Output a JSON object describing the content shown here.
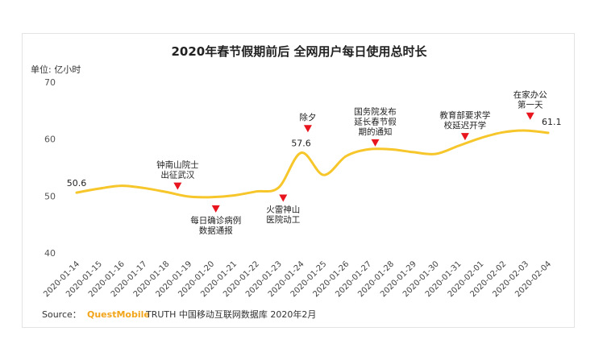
{
  "chart_data": {
    "type": "line",
    "title": "2020年春节假期前后 全网用户每日使用总时长",
    "ylabel": "单位: 亿小时",
    "ylim": [
      40,
      70
    ],
    "yticks": [
      40,
      50,
      60,
      70
    ],
    "grid": false,
    "series_color": "#f6c62a",
    "marker_color": "#e8141e",
    "categories": [
      "2020-01-14",
      "2020-01-15",
      "2020-01-16",
      "2020-01-17",
      "2020-01-18",
      "2020-01-19",
      "2020-01-20",
      "2020-01-21",
      "2020-01-22",
      "2020-01-23",
      "2020-01-24",
      "2020-01-25",
      "2020-01-26",
      "2020-01-27",
      "2020-01-28",
      "2020-01-29",
      "2020-01-30",
      "2020-01-31",
      "2020-02-01",
      "2020-02-02",
      "2020-02-03",
      "2020-02-04"
    ],
    "values": [
      50.6,
      51.3,
      51.8,
      51.4,
      50.7,
      49.9,
      49.8,
      50.1,
      50.8,
      51.5,
      57.6,
      53.7,
      57.0,
      58.2,
      58.2,
      57.7,
      57.4,
      58.8,
      60.2,
      61.2,
      61.5,
      61.1
    ],
    "data_labels": [
      {
        "index": 0,
        "text": "50.6"
      },
      {
        "index": 10,
        "text": "57.6"
      },
      {
        "index": 21,
        "text": "61.1"
      }
    ],
    "annotations": [
      {
        "index": 4.5,
        "lines": [
          "钟南山院士",
          "出征武汉"
        ],
        "pos": "above",
        "y": 51.8
      },
      {
        "index": 6.2,
        "lines": [
          "每日确诊病例",
          "数据通报"
        ],
        "pos": "below",
        "y": 47.8
      },
      {
        "index": 9.2,
        "lines": [
          "火雷神山",
          "医院动工"
        ],
        "pos": "below",
        "y": 49.7
      },
      {
        "index": 10.3,
        "lines": [
          "除夕"
        ],
        "pos": "above",
        "y": 61.9
      },
      {
        "index": 13.3,
        "lines": [
          "国务院发布",
          "延长春节假",
          "期的通知"
        ],
        "pos": "above",
        "y": 59.4
      },
      {
        "index": 17.3,
        "lines": [
          "教育部要求学",
          "校延迟开学"
        ],
        "pos": "above",
        "y": 60.5
      },
      {
        "index": 20.2,
        "lines": [
          "在家办公",
          "第一天"
        ],
        "pos": "above",
        "y": 64.1
      }
    ]
  },
  "footer": {
    "source_label": "Source：",
    "brand": "QuestMobile",
    "source_text": "TRUTH 中国移动互联网数据库 2020年2月"
  }
}
